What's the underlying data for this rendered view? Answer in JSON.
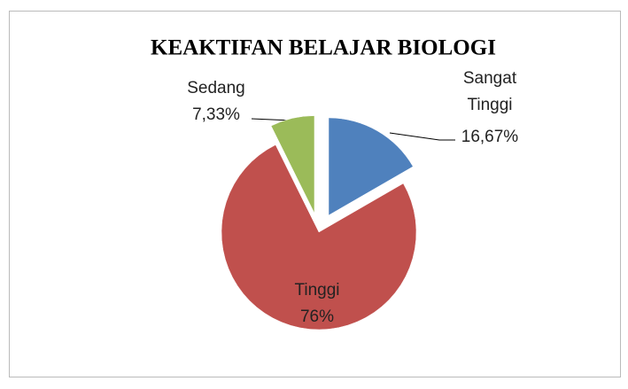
{
  "chart_data": {
    "type": "pie",
    "title": "KEAKTIFAN BELAJAR BIOLOGI",
    "categories": [
      "Sangat Tinggi",
      "Tinggi",
      "Sedang"
    ],
    "values": [
      16.67,
      76,
      7.33
    ],
    "value_labels": [
      "16,67%",
      "76%",
      "7,33%"
    ],
    "colors": [
      "#4f81bd",
      "#c0504d",
      "#9bbb59"
    ]
  }
}
